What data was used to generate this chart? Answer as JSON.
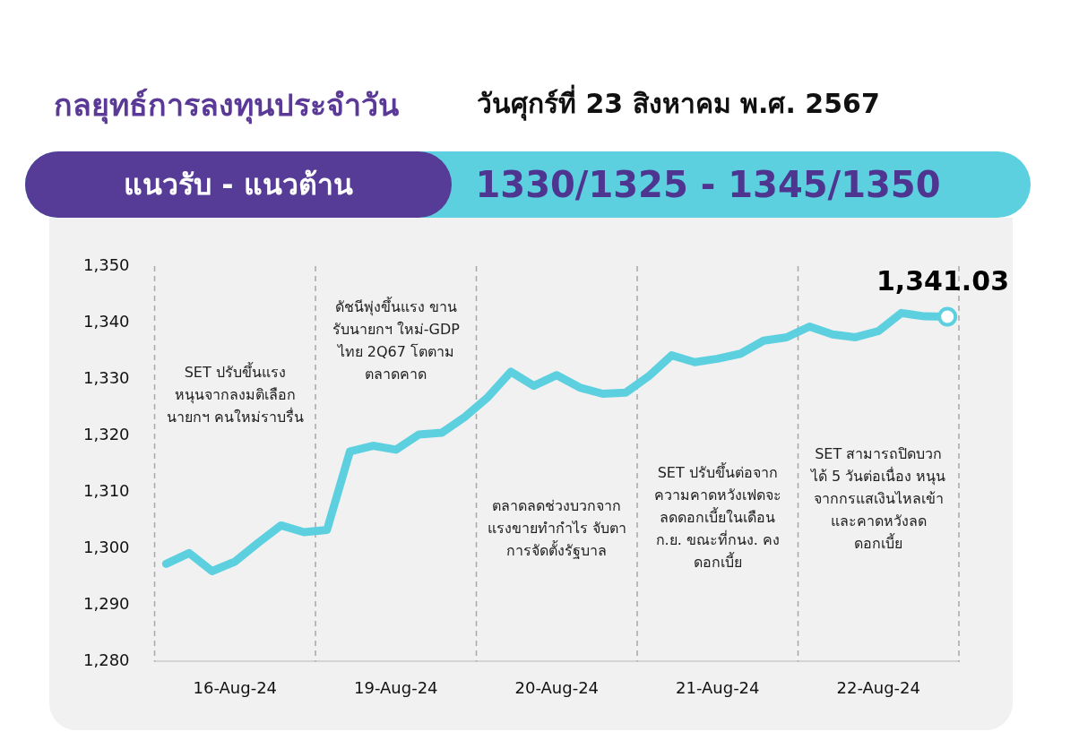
{
  "chart_data": {
    "type": "line",
    "title": "กลยุทธ์การลงทุนประจำวัน",
    "subtitle": "วันศุกร์ที่ 23 สิงหาคม พ.ศ. 2567",
    "categories": [
      null,
      null,
      null,
      "16-Aug-24",
      null,
      null,
      null,
      null,
      null,
      null,
      "19-Aug-24",
      null,
      null,
      null,
      null,
      null,
      null,
      "20-Aug-24",
      null,
      null,
      null,
      null,
      null,
      null,
      "21-Aug-24",
      null,
      null,
      null,
      null,
      null,
      null,
      "22-Aug-24",
      null,
      null,
      null
    ],
    "series": [
      {
        "color": "#5dd0e0",
        "values": [
          1297.3,
          1299.2,
          1296,
          1297.7,
          1301,
          1304.1,
          1302.9,
          1303.3,
          1317.2,
          1318.2,
          1317.5,
          1320.2,
          1320.5,
          1323.3,
          1326.8,
          1331.3,
          1328.8,
          1330.7,
          1328.5,
          1327.4,
          1327.6,
          1330.5,
          1334.2,
          1333,
          1333.6,
          1334.5,
          1336.8,
          1337.4,
          1339.3,
          1337.9,
          1337.4,
          1338.5,
          1341.7,
          1341.1,
          1341.03
        ],
        "value_labels": [
          null,
          null,
          null,
          null,
          null,
          null,
          null,
          null,
          null,
          null,
          null,
          null,
          null,
          null,
          null,
          null,
          null,
          null,
          null,
          null,
          null,
          null,
          null,
          null,
          null,
          null,
          null,
          null,
          null,
          null,
          null,
          null,
          null,
          null,
          "1,341.03"
        ]
      }
    ],
    "ylim": [
      1280,
      1350
    ],
    "yticks": [
      {
        "value": 1280,
        "label": "1,280"
      },
      {
        "value": 1290,
        "label": "1,290"
      },
      {
        "value": 1300,
        "label": "1,300"
      },
      {
        "value": 1310,
        "label": "1,310"
      },
      {
        "value": 1320,
        "label": "1,320"
      },
      {
        "value": 1330,
        "label": "1,330"
      },
      {
        "value": 1340,
        "label": "1,340"
      },
      {
        "value": 1350,
        "label": "1,350"
      }
    ],
    "grid": "x",
    "legend": false,
    "marker": "none",
    "line_style": "solid",
    "annotations": [
      "แนวรับ - แนวต้าน",
      "1330/1325 - 1345/1350",
      "SET ปรับขึ้นแรง\nหนุนจากลงมติเลือก\nนายกฯ คนใหม่ราบรื่น",
      "ดัชนีพุ่งขึ้นแรง ขาน\nรับนายกฯ ใหม่-GDP\nไทย 2Q67 โตตาม\nตลาดคาด",
      "ตลาดลดช่วงบวกจาก\nแรงขายทำกำไร จับตา\nการจัดตั้งรัฐบาล",
      "SET ปรับขึ้นต่อจาก\nความคาดหวังเฟดจะ\nลดดอกเบี้ยในเดือน\nก.ย. ขณะที่กนง. คง\nดอกเบี้ย",
      "SET สามารถปิดบวก\nได้ 5 วันต่อเนื่อง หนุน\nจากกรแสเงินไหลเข้า\nและคาดหวังลด\nดอกเบี้ย"
    ]
  }
}
